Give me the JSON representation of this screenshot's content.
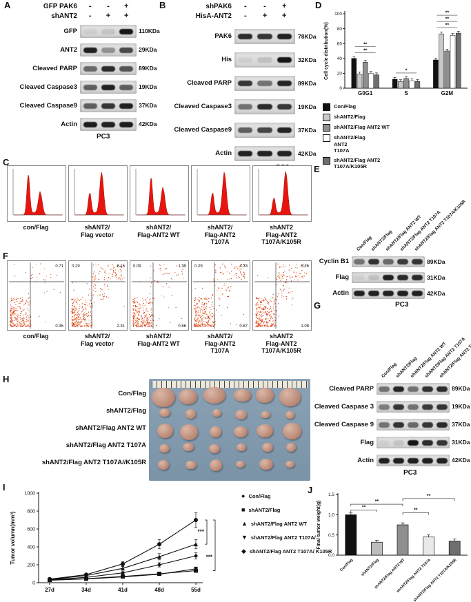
{
  "figure": {
    "panels": {
      "A": {
        "tag": "A",
        "cell_line": "PC3",
        "conditions": [
          {
            "name": "GFP PAK6",
            "symbols": [
              "-",
              "-",
              "+"
            ]
          },
          {
            "name": "shANT2",
            "symbols": [
              "-",
              "+",
              "+"
            ]
          }
        ],
        "rows": [
          {
            "label": "GFP",
            "kda": "110KDa",
            "bands": [
              0.06,
              0.1,
              0.95
            ]
          },
          {
            "label": "ANT2",
            "kda": "29KDa",
            "bands": [
              0.9,
              0.35,
              0.7
            ]
          },
          {
            "label": "Cleaved PARP",
            "kda": "89KDa",
            "bands": [
              0.55,
              0.85,
              0.65
            ]
          },
          {
            "label": "Cleaved Caspase3",
            "kda": "19KDa",
            "bands": [
              0.6,
              0.9,
              0.6
            ]
          },
          {
            "label": "Cleaved Caspase9",
            "kda": "37KDa",
            "bands": [
              0.6,
              0.8,
              0.9
            ]
          },
          {
            "label": "Actin",
            "kda": "42KDa",
            "bands": [
              0.92,
              0.9,
              0.92
            ]
          }
        ]
      },
      "B": {
        "tag": "B",
        "cell_line": "PC3",
        "conditions": [
          {
            "name": "shPAK6",
            "symbols": [
              "-",
              "-",
              "+"
            ]
          },
          {
            "name": "HisA-ANT2",
            "symbols": [
              "-",
              "+",
              "+"
            ]
          }
        ],
        "rows": [
          {
            "label": "PAK6",
            "kda": "78KDa",
            "bands": [
              0.85,
              0.8,
              0.9
            ]
          },
          {
            "label": "His",
            "kda": "32KDa",
            "bands": [
              0.05,
              0.12,
              0.95
            ]
          },
          {
            "label": "Cleaved PARP",
            "kda": "89KDa",
            "bands": [
              0.8,
              0.5,
              0.88
            ]
          },
          {
            "label": "Cleaved Caspase3",
            "kda": "19KDa",
            "bands": [
              0.5,
              0.85,
              0.8
            ]
          },
          {
            "label": "Cleaved Caspase9",
            "kda": "37KDa",
            "bands": [
              0.6,
              0.72,
              0.88
            ]
          },
          {
            "label": "Actin",
            "kda": "42KDa",
            "bands": [
              0.9,
              0.9,
              0.9
            ]
          }
        ]
      },
      "C": {
        "tag": "C",
        "plots": [
          {
            "label": "con/Flag",
            "g1_peak": 0.92,
            "g2_peak": 0.5
          },
          {
            "label": "shANT2/\nFlag vector",
            "g1_peak": 0.5,
            "g2_peak": 0.95
          },
          {
            "label": "shANT2/\nFlag-ANT2 WT",
            "g1_peak": 0.85,
            "g2_peak": 0.6
          },
          {
            "label": "shANT2/\nFlag-ANT2\nT107A",
            "g1_peak": 0.5,
            "g2_peak": 0.95
          },
          {
            "label": "shANT2\nFlag-ANT2\nT107A/K105R",
            "g1_peak": 0.38,
            "g2_peak": 0.97
          }
        ]
      },
      "D": {
        "tag": "D"
      },
      "E": {
        "tag": "E",
        "cell_line": "PC3",
        "columns": [
          "Con/Flag",
          "shANT2/Flag",
          "shANT2/Flag ANT2 WT",
          "shANT2/Flag ANT2 T107A",
          "shANT2/Flag ANT2 T107A/K105R"
        ],
        "rows": [
          {
            "label": "Cyclin B1",
            "kda": "89KDa",
            "bands": [
              0.5,
              0.82,
              0.55,
              0.78,
              0.8
            ]
          },
          {
            "label": "Flag",
            "kda": "31KDa",
            "bands": [
              0.05,
              0.12,
              0.9,
              0.85,
              0.85
            ]
          },
          {
            "label": "Actin",
            "kda": "42KDa",
            "bands": [
              0.9,
              0.9,
              0.9,
              0.9,
              0.9
            ]
          }
        ]
      },
      "F": {
        "tag": "F",
        "plots": [
          {
            "label": "con/Flag",
            "quadrants": {
              "tl": "",
              "tr": "0.71",
              "br": "0.35"
            },
            "apoptosis_level": 0.08
          },
          {
            "label": "shANT2/\nFlag vector",
            "quadrants": {
              "tl": "0.29",
              "tr": "6.16",
              "br": "2.31"
            },
            "apoptosis_level": 0.9
          },
          {
            "label": "shANT2/\nFlag-ANT2 WT",
            "quadrants": {
              "tl": "0.09",
              "tr": "1.39",
              "br": "0.56"
            },
            "apoptosis_level": 0.3
          },
          {
            "label": "shANT2/\nFlag-ANT2\nT107A",
            "quadrants": {
              "tl": "0.29",
              "tr": "4.33",
              "br": "0.87"
            },
            "apoptosis_level": 0.7
          },
          {
            "label": "shANT2\nFlag-ANT2\nT107A/K105R",
            "quadrants": {
              "tl": "",
              "tr": "5.26",
              "br": "1.08"
            },
            "apoptosis_level": 0.8
          }
        ]
      },
      "G": {
        "tag": "G",
        "cell_line": "PC3",
        "columns": [
          "Con/Flag",
          "shANT2/Flag",
          "shANT2/Flag ANT2 WT",
          "shANT2/Flag ANT2 T107A",
          "shANT2/Flag ANT2 T107A/K105R"
        ],
        "rows": [
          {
            "label": "Cleaved PARP",
            "kda": "89KDa",
            "bands": [
              0.5,
              0.88,
              0.5,
              0.82,
              0.85
            ]
          },
          {
            "label": "Cleaved Caspase 3",
            "kda": "19KDa",
            "bands": [
              0.45,
              0.8,
              0.5,
              0.78,
              0.8
            ]
          },
          {
            "label": "Cleaved Caspase 9",
            "kda": "37KDa",
            "bands": [
              0.5,
              0.82,
              0.55,
              0.8,
              0.85
            ]
          },
          {
            "label": "Flag",
            "kda": "31KDa",
            "bands": [
              0.05,
              0.1,
              0.95,
              0.85,
              0.8
            ]
          },
          {
            "label": "Actin",
            "kda": "42KDa",
            "bands": [
              0.9,
              0.9,
              0.9,
              0.9,
              0.9
            ]
          }
        ]
      },
      "H": {
        "tag": "H",
        "row_labels": [
          "Con/Flag",
          "shANT2/Flag",
          "shANT2/Flag ANT2 WT",
          "shANT2/Flag ANT2 T107A",
          "shANT2/Flag ANT2 T107A//K105R"
        ],
        "tumors_per_row": 6,
        "row_size_factor": [
          1.0,
          0.6,
          0.85,
          0.68,
          0.58
        ]
      },
      "I": {
        "tag": "I"
      },
      "J": {
        "tag": "J"
      }
    }
  },
  "chart_data": [
    {
      "id": "D",
      "type": "bar",
      "ylabel": "Cell cycle distribution(%)",
      "ylim": [
        0,
        100
      ],
      "yticks": [
        0,
        20,
        40,
        60,
        80,
        100
      ],
      "categories": [
        "G0G1",
        "S",
        "G2M"
      ],
      "series": [
        {
          "name": "Con/Flag",
          "color": "#111111",
          "values": [
            40,
            12,
            38
          ]
        },
        {
          "name": "shANT2/Flag",
          "color": "#c9c9c9",
          "values": [
            19,
            9,
            73
          ]
        },
        {
          "name": "shANT2/Flag ANT2 WT",
          "color": "#8f8f8f",
          "values": [
            35,
            13,
            50
          ]
        },
        {
          "name": "shANT2/Flag\nANT2\nT107A",
          "color": "#ffffff",
          "values": [
            20,
            10,
            71
          ]
        },
        {
          "name": "shANT2/Flag ANT2\nT107A/K105R",
          "color": "#6f6f6f",
          "values": [
            18,
            9,
            74
          ]
        }
      ],
      "sig": [
        [
          "**",
          "**"
        ],
        [
          "*"
        ],
        [
          "**",
          "**",
          "**"
        ]
      ],
      "legend_position": "below"
    },
    {
      "id": "I",
      "type": "line",
      "ylabel": "Tumor volumn(mm³)",
      "ylim": [
        0,
        1000
      ],
      "yticks": [
        0,
        200,
        400,
        600,
        800,
        1000
      ],
      "x": [
        "27d",
        "34d",
        "41d",
        "48d",
        "55d"
      ],
      "series": [
        {
          "name": "Con/Flag",
          "marker": "circle",
          "values": [
            40,
            90,
            210,
            430,
            700
          ]
        },
        {
          "name": "shANT2/Flag",
          "marker": "square",
          "values": [
            30,
            45,
            70,
            100,
            135
          ]
        },
        {
          "name": "shANT2/Flag ANT2 WT",
          "marker": "triangle-up",
          "values": [
            35,
            80,
            160,
            290,
            430
          ]
        },
        {
          "name": "shANT2/Flag ANT2 T107A/",
          "marker": "triangle-down",
          "values": [
            28,
            42,
            65,
            95,
            155
          ]
        },
        {
          "name": "shANT2/Flag ANT2 T107A/ K105R",
          "marker": "diamond",
          "values": [
            32,
            60,
            110,
            200,
            300
          ]
        }
      ],
      "sig": [
        "***",
        "***"
      ],
      "legend_position": "right"
    },
    {
      "id": "J",
      "type": "bar",
      "ylabel": "Final tumor weight(g)",
      "ylim": [
        0,
        1.5
      ],
      "yticks": [
        "0.0",
        "0.5",
        "1.0",
        "1.5"
      ],
      "categories": [
        "Con/Flag",
        "shANT2/Flag",
        "shANT2/Flag ANT2 WT",
        "shANT2/Flag ANT2 T107A",
        "shANT2/Flag ANT2 T107A/K105R"
      ],
      "values": [
        1.0,
        0.32,
        0.75,
        0.45,
        0.35
      ],
      "colors": [
        "#111111",
        "#bdbdbd",
        "#8f8f8f",
        "#e9e9e9",
        "#6f6f6f"
      ],
      "sig": [
        {
          "a": 0,
          "b": 1,
          "y": 1.12,
          "label": "**"
        },
        {
          "a": 0,
          "b": 2,
          "y": 1.26,
          "label": "**"
        },
        {
          "a": 2,
          "b": 3,
          "y": 1.05,
          "label": "**"
        },
        {
          "a": 2,
          "b": 4,
          "y": 1.4,
          "label": "**"
        }
      ]
    }
  ]
}
